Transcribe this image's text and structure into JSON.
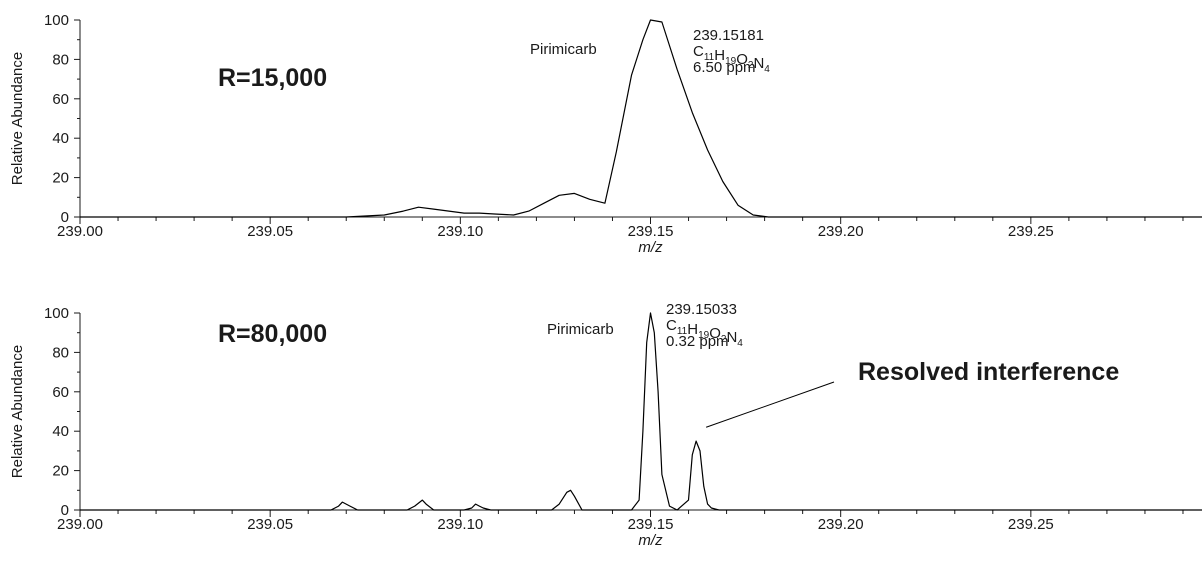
{
  "chart_data": [
    {
      "type": "line",
      "resolution_label": "R=15,000",
      "xlabel": "m/z",
      "ylabel": "Relative Abundance",
      "xlim": [
        239.0,
        239.295
      ],
      "ylim": [
        0,
        100
      ],
      "x_ticks": [
        239.0,
        239.05,
        239.1,
        239.15,
        239.2,
        239.25
      ],
      "x_tick_labels": [
        "239.00",
        "239.05",
        "239.10",
        "239.15",
        "239.20",
        "239.25"
      ],
      "y_ticks": [
        0,
        20,
        40,
        60,
        80,
        100
      ],
      "y_tick_labels": [
        "0",
        "20",
        "40",
        "60",
        "80",
        "100"
      ],
      "compound_label": "Pirimicarb",
      "peak_mass": "239.15181",
      "formula": {
        "C": "11",
        "H": "19",
        "O": "2",
        "N": "4"
      },
      "ppm": "6.50 ppm",
      "series": [
        {
          "x": [
            239.0,
            239.07,
            239.08,
            239.085,
            239.089,
            239.093,
            239.097,
            239.101,
            239.105,
            239.109,
            239.114,
            239.118,
            239.122,
            239.126,
            239.13,
            239.134,
            239.138,
            239.141,
            239.145,
            239.148,
            239.15,
            239.153,
            239.157,
            239.161,
            239.165,
            239.169,
            239.173,
            239.177,
            239.181,
            239.185,
            239.295
          ],
          "y": [
            0,
            0,
            1,
            3,
            5,
            4,
            3,
            2,
            2,
            1.5,
            1,
            3,
            7,
            11,
            12,
            9,
            7,
            33,
            72,
            90,
            100,
            99,
            75,
            53,
            34,
            18,
            6,
            1,
            0,
            0,
            0
          ]
        }
      ]
    },
    {
      "type": "line",
      "resolution_label": "R=80,000",
      "xlabel": "m/z",
      "ylabel": "Relative Abundance",
      "xlim": [
        239.0,
        239.295
      ],
      "ylim": [
        0,
        100
      ],
      "x_ticks": [
        239.0,
        239.05,
        239.1,
        239.15,
        239.2,
        239.25
      ],
      "x_tick_labels": [
        "239.00",
        "239.05",
        "239.10",
        "239.15",
        "239.20",
        "239.25"
      ],
      "y_ticks": [
        0,
        20,
        40,
        60,
        80,
        100
      ],
      "y_tick_labels": [
        "0",
        "20",
        "40",
        "60",
        "80",
        "100"
      ],
      "compound_label": "Pirimicarb",
      "peak_mass": "239.15033",
      "formula": {
        "C": "11",
        "H": "19",
        "O": "2",
        "N": "4"
      },
      "ppm": "0.32 ppm",
      "annotation": "Resolved interference",
      "annotation_target": {
        "x": 239.162,
        "y": 41
      },
      "series": [
        {
          "x": [
            239.0,
            239.066,
            239.068,
            239.069,
            239.07,
            239.071,
            239.073,
            239.086,
            239.088,
            239.09,
            239.091,
            239.093,
            239.101,
            239.103,
            239.104,
            239.105,
            239.106,
            239.108,
            239.124,
            239.126,
            239.128,
            239.129,
            239.13,
            239.132,
            239.145,
            239.147,
            239.148,
            239.149,
            239.15,
            239.151,
            239.152,
            239.153,
            239.155,
            239.157,
            239.16,
            239.161,
            239.162,
            239.163,
            239.164,
            239.165,
            239.166,
            239.168,
            239.295
          ],
          "y": [
            0,
            0,
            2,
            4,
            3,
            2,
            0,
            0,
            2,
            5,
            3,
            0,
            0,
            1,
            3,
            2,
            1,
            0,
            0,
            3,
            9,
            10,
            7,
            0,
            0,
            5,
            40,
            85,
            100,
            90,
            60,
            18,
            2,
            0,
            5,
            28,
            35,
            30,
            12,
            3,
            1,
            0,
            0
          ]
        }
      ]
    }
  ]
}
